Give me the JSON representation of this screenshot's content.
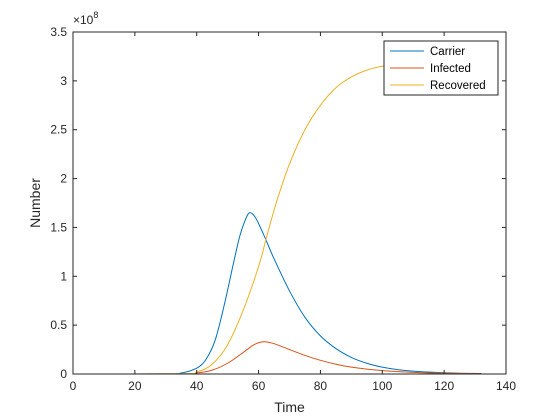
{
  "chart_data": {
    "type": "line",
    "title": "",
    "xlabel": "Time",
    "ylabel": "Number",
    "xlim": [
      0,
      140
    ],
    "ylim": [
      0,
      3.5
    ],
    "y_exponent_label": "×10",
    "y_exponent_power": "8",
    "x_ticks": [
      0,
      20,
      40,
      60,
      80,
      100,
      120,
      140
    ],
    "x_tick_labels": [
      "0",
      "20",
      "40",
      "60",
      "80",
      "100",
      "120",
      "140"
    ],
    "y_ticks": [
      0,
      0.5,
      1,
      1.5,
      2,
      2.5,
      3,
      3.5
    ],
    "y_tick_labels": [
      "0",
      "0.5",
      "1",
      "1.5",
      "2",
      "2.5",
      "3",
      "3.5"
    ],
    "grid": false,
    "legend_position": "top-right",
    "series": [
      {
        "name": "Carrier",
        "color": "#0072BD",
        "x": [
          0,
          30,
          35,
          40,
          43,
          46,
          49,
          52,
          54,
          56,
          57,
          58,
          59,
          60,
          62,
          65,
          70,
          75,
          80,
          85,
          90,
          95,
          100,
          105,
          110,
          115,
          120,
          125,
          132
        ],
        "y": [
          0,
          0.001,
          0.01,
          0.06,
          0.15,
          0.35,
          0.72,
          1.15,
          1.42,
          1.6,
          1.65,
          1.64,
          1.6,
          1.54,
          1.4,
          1.18,
          0.85,
          0.58,
          0.39,
          0.26,
          0.17,
          0.11,
          0.07,
          0.045,
          0.03,
          0.02,
          0.013,
          0.008,
          0.005
        ]
      },
      {
        "name": "Infected",
        "color": "#D95319",
        "x": [
          0,
          35,
          40,
          45,
          50,
          55,
          58,
          60,
          62,
          65,
          70,
          75,
          80,
          85,
          90,
          95,
          100,
          110,
          120,
          132
        ],
        "y": [
          0,
          0.001,
          0.01,
          0.04,
          0.11,
          0.22,
          0.29,
          0.32,
          0.33,
          0.31,
          0.25,
          0.19,
          0.14,
          0.1,
          0.07,
          0.05,
          0.035,
          0.017,
          0.008,
          0.003
        ]
      },
      {
        "name": "Recovered",
        "color": "#EDB120",
        "x": [
          0,
          35,
          40,
          45,
          50,
          55,
          60,
          63,
          66,
          70,
          75,
          80,
          85,
          90,
          95,
          100,
          105,
          110,
          115,
          120,
          125,
          132
        ],
        "y": [
          0,
          0.002,
          0.02,
          0.1,
          0.3,
          0.65,
          1.1,
          1.45,
          1.78,
          2.15,
          2.5,
          2.75,
          2.93,
          3.04,
          3.11,
          3.15,
          3.17,
          3.19,
          3.2,
          3.21,
          3.22,
          3.22
        ]
      }
    ]
  }
}
